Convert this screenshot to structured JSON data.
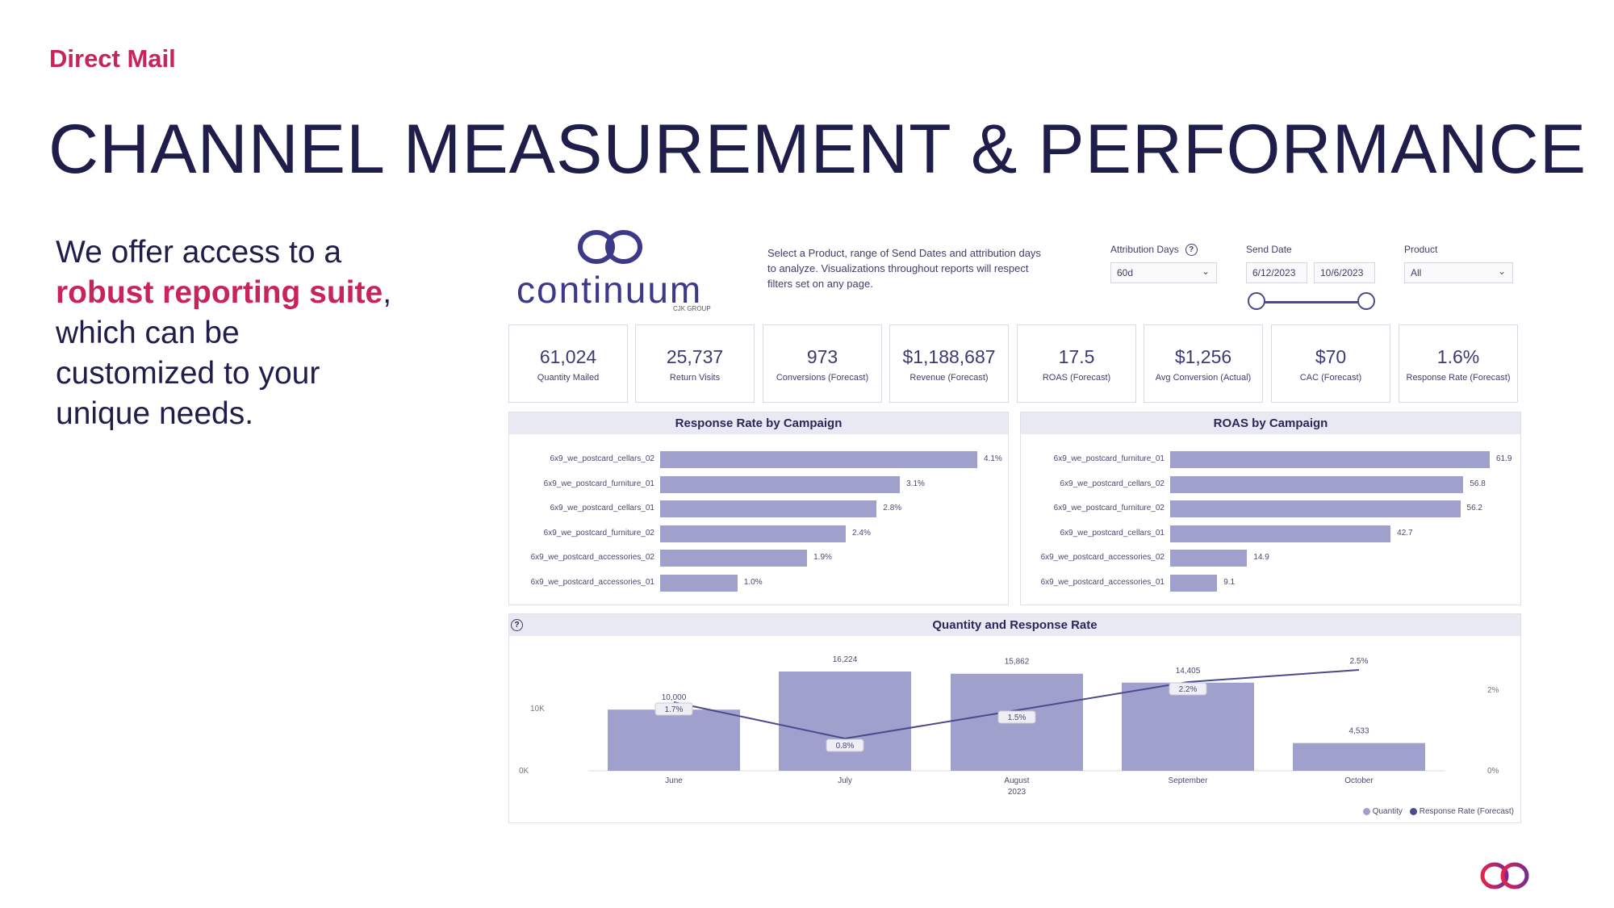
{
  "section_label": "Direct Mail",
  "page_title": "CHANNEL MEASUREMENT & PERFORMANCE",
  "intro": {
    "line1": "We offer access to a",
    "highlight": "robust reporting suite",
    "after_highlight": ",",
    "line3": "which can be",
    "line4": "customized to your",
    "line5": "unique needs."
  },
  "dashboard": {
    "logo_text": "continuum",
    "logo_sub": "CJK GROUP",
    "instructions": "Select a Product, range of Send Dates and attribution days to analyze. Visualizations throughout reports will respect filters set on any page.",
    "filters": {
      "attribution_label": "Attribution Days",
      "attribution_value": "60d",
      "send_date_label": "Send Date",
      "send_date_start": "6/12/2023",
      "send_date_end": "10/6/2023",
      "product_label": "Product",
      "product_value": "All"
    },
    "kpis": [
      {
        "value": "61,024",
        "label": "Quantity Mailed"
      },
      {
        "value": "25,737",
        "label": "Return Visits"
      },
      {
        "value": "973",
        "label": "Conversions (Forecast)"
      },
      {
        "value": "$1,188,687",
        "label": "Revenue (Forecast)"
      },
      {
        "value": "17.5",
        "label": "ROAS (Forecast)"
      },
      {
        "value": "$1,256",
        "label": "Avg Conversion (Actual)"
      },
      {
        "value": "$70",
        "label": "CAC (Forecast)"
      },
      {
        "value": "1.6%",
        "label": "Response Rate (Forecast)"
      }
    ]
  },
  "colors": {
    "accent": "#c8235a",
    "navy": "#1f1d4a",
    "bar": "#9fa1cc",
    "line": "#4a4a8c"
  },
  "chart_data": [
    {
      "type": "bar",
      "orientation": "horizontal",
      "title": "Response Rate by Campaign",
      "categories": [
        "6x9_we_postcard_cellars_02",
        "6x9_we_postcard_furniture_01",
        "6x9_we_postcard_cellars_01",
        "6x9_we_postcard_furniture_02",
        "6x9_we_postcard_accessories_02",
        "6x9_we_postcard_accessories_01"
      ],
      "values": [
        4.1,
        3.1,
        2.8,
        2.4,
        1.9,
        1.0
      ],
      "value_labels": [
        "4.1%",
        "3.1%",
        "2.8%",
        "2.4%",
        "1.9%",
        "1.0%"
      ]
    },
    {
      "type": "bar",
      "orientation": "horizontal",
      "title": "ROAS by Campaign",
      "categories": [
        "6x9_we_postcard_furniture_01",
        "6x9_we_postcard_cellars_02",
        "6x9_we_postcard_furniture_02",
        "6x9_we_postcard_cellars_01",
        "6x9_we_postcard_accessories_02",
        "6x9_we_postcard_accessories_01"
      ],
      "values": [
        61.9,
        56.8,
        56.2,
        42.7,
        14.9,
        9.1
      ],
      "value_labels": [
        "61.9",
        "56.8",
        "56.2",
        "42.7",
        "14.9",
        "9.1"
      ]
    },
    {
      "type": "bar",
      "title": "Quantity and Response Rate",
      "categories": [
        "June",
        "July",
        "August",
        "September",
        "October"
      ],
      "x_sublabel": "2023",
      "series": [
        {
          "name": "Quantity",
          "values": [
            10000,
            16224,
            15862,
            14405,
            4533
          ],
          "labels": [
            "10,000",
            "16,224",
            "15,862",
            "14,405",
            "4,533"
          ]
        },
        {
          "name": "Response Rate (Forecast)",
          "type": "line",
          "values": [
            1.7,
            0.8,
            1.5,
            2.2,
            2.5
          ],
          "labels": [
            "1.7%",
            "0.8%",
            "1.5%",
            "2.2%",
            "2.5%"
          ]
        }
      ],
      "y_ticks": [
        "0K",
        "10K"
      ],
      "y2_ticks": [
        "0%",
        "2%"
      ],
      "ylim": [
        0,
        16224
      ],
      "y2lim": [
        0,
        2.5
      ],
      "legend": "bottom-right"
    }
  ]
}
